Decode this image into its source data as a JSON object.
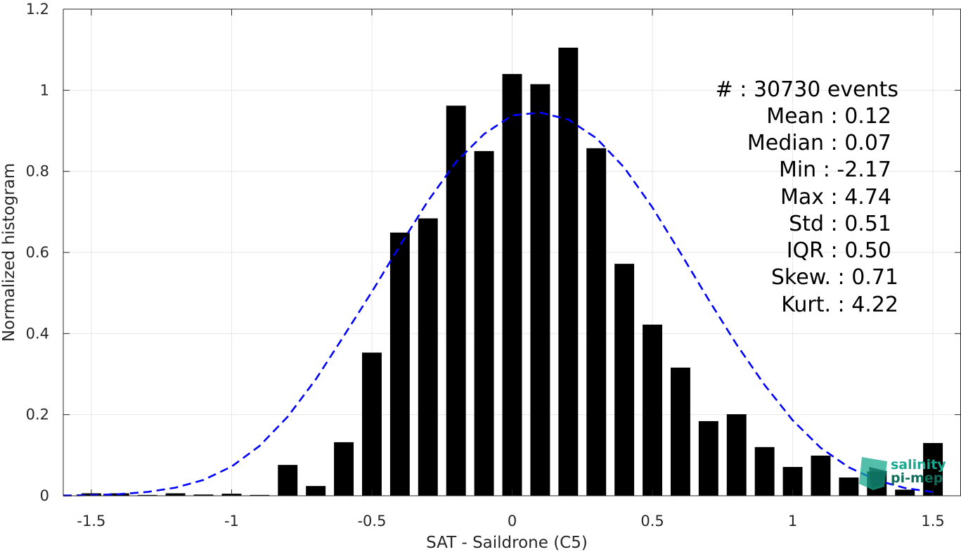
{
  "chart_data": {
    "type": "bar",
    "xlabel": "SAT - Saildrone (C5)",
    "ylabel": "Normalized histogram",
    "xlim": [
      -1.6,
      1.6
    ],
    "ylim": [
      0,
      1.2
    ],
    "grid": true,
    "xticks": [
      -1.5,
      -1,
      -0.5,
      0,
      0.5,
      1,
      1.5
    ],
    "xtick_labels": [
      "-1.5",
      "-1",
      "-0.5",
      "0",
      "0.5",
      "1",
      "1.5"
    ],
    "yticks": [
      0,
      0.2,
      0.4,
      0.6,
      0.8,
      1,
      1.2
    ],
    "ytick_labels": [
      "0",
      "0.2",
      "0.4",
      "0.6",
      "0.8",
      "1",
      "1.2"
    ],
    "bin_width": 0.1,
    "bar_width": 0.07,
    "bar_color": "#000000",
    "x": [
      -1.5,
      -1.4,
      -1.3,
      -1.2,
      -1.1,
      -1.0,
      -0.9,
      -0.8,
      -0.7,
      -0.6,
      -0.5,
      -0.4,
      -0.3,
      -0.2,
      -0.1,
      0.0,
      0.1,
      0.2,
      0.3,
      0.4,
      0.5,
      0.6,
      0.7,
      0.8,
      0.9,
      1.0,
      1.1,
      1.2,
      1.3,
      1.4,
      1.5
    ],
    "values": [
      0.006,
      0.006,
      0.002,
      0.006,
      0.003,
      0.005,
      0.002,
      0.076,
      0.024,
      0.132,
      0.353,
      0.649,
      0.684,
      0.962,
      0.85,
      1.04,
      1.015,
      1.105,
      0.857,
      0.572,
      0.422,
      0.316,
      0.184,
      0.201,
      0.12,
      0.071,
      0.099,
      0.045,
      0.06,
      0.015,
      0.13
    ],
    "fit_curve": {
      "style": "dashed",
      "color": "#0000ff",
      "x": [
        -1.6,
        -1.5,
        -1.4,
        -1.3,
        -1.2,
        -1.1,
        -1.0,
        -0.9,
        -0.8,
        -0.7,
        -0.6,
        -0.5,
        -0.4,
        -0.3,
        -0.2,
        -0.1,
        0.0,
        0.1,
        0.2,
        0.3,
        0.4,
        0.5,
        0.6,
        0.7,
        0.8,
        0.9,
        1.0,
        1.1,
        1.2,
        1.3,
        1.4,
        1.5
      ],
      "y": [
        0.0006,
        0.0016,
        0.004,
        0.0093,
        0.0199,
        0.039,
        0.072,
        0.123,
        0.195,
        0.287,
        0.394,
        0.503,
        0.617,
        0.727,
        0.823,
        0.892,
        0.938,
        0.945,
        0.928,
        0.882,
        0.809,
        0.711,
        0.599,
        0.484,
        0.373,
        0.273,
        0.186,
        0.118,
        0.07,
        0.038,
        0.019,
        0.009
      ]
    },
    "stats": [
      "#  : 30730 events",
      "Mean : 0.12",
      "Median : 0.07",
      "Min : -2.17",
      "Max : 4.74",
      "Std : 0.51",
      "IQR : 0.50",
      "Skew. : 0.71",
      "Kurt. : 4.22"
    ]
  },
  "logo": {
    "line1": "salinity",
    "line2": "pi-mep",
    "color1": "#1aa88e",
    "color2": "#0e6e5c"
  }
}
